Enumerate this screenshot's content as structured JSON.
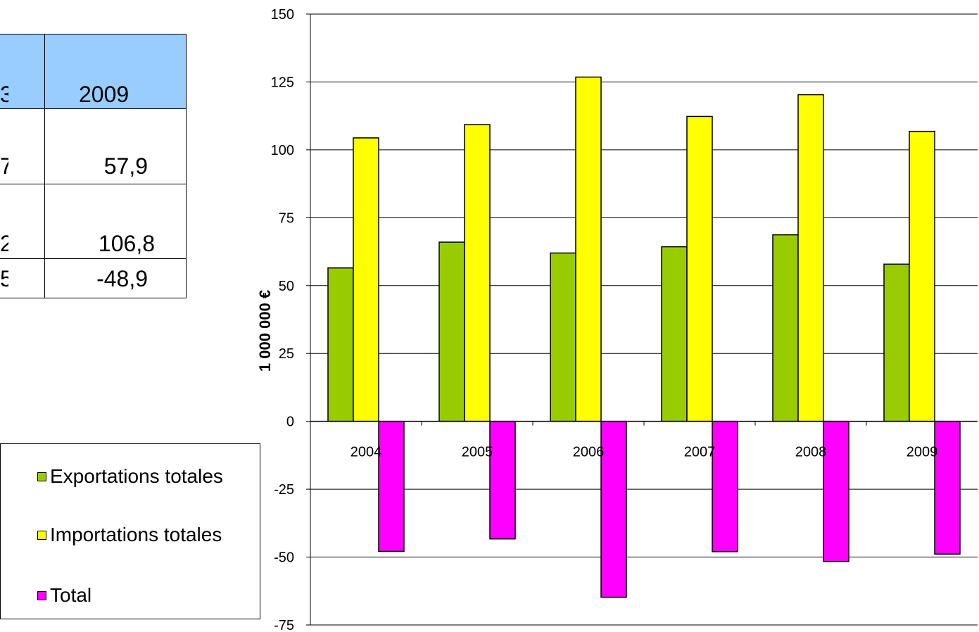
{
  "table": {
    "header": [
      "3",
      "2009"
    ],
    "rows": [
      [
        "7",
        "57,9"
      ],
      [
        "2",
        "106,8"
      ],
      [
        "5",
        "-48,9"
      ]
    ]
  },
  "chart_data": {
    "type": "bar",
    "categories": [
      "2004",
      "2005",
      "2006",
      "2007",
      "2008",
      "2009"
    ],
    "series": [
      {
        "name": "Exportations totales",
        "color": "#99cc00",
        "values": [
          56.5,
          66.0,
          62.0,
          64.3,
          68.7,
          57.9
        ]
      },
      {
        "name": "Importations totales",
        "color": "#ffff00",
        "values": [
          104.4,
          109.3,
          126.8,
          112.3,
          120.3,
          106.8
        ]
      },
      {
        "name": "Total",
        "color": "#ff00ff",
        "values": [
          -47.9,
          -43.3,
          -64.8,
          -48.0,
          -51.6,
          -48.9
        ]
      }
    ],
    "ylabel": "1 000 000 €",
    "ylim": [
      -75,
      150
    ],
    "yticks": [
      "150",
      "125",
      "100",
      "75",
      "50",
      "25",
      "0",
      "-25",
      "-50",
      "-75"
    ],
    "grid": true,
    "legend_position": "left"
  }
}
